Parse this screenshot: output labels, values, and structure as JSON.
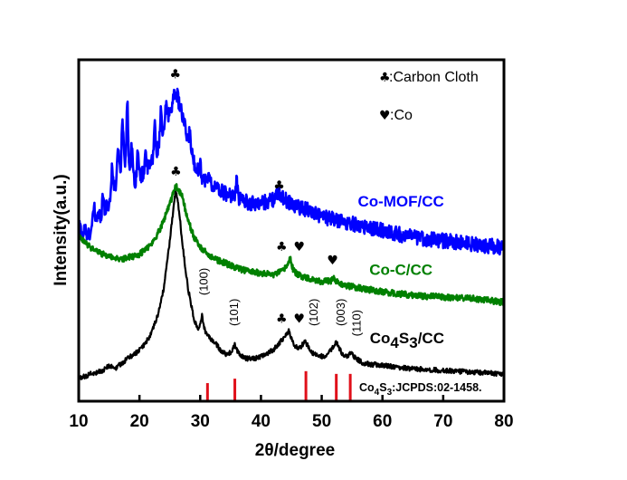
{
  "chart_data": {
    "type": "line",
    "title": "",
    "xlabel": "2θ/degree",
    "ylabel": "Intensity(a.u.)",
    "xlim": [
      10,
      80
    ],
    "ylim": [
      0,
      100
    ],
    "xticks": [
      10,
      20,
      30,
      40,
      50,
      60,
      70,
      80
    ],
    "xtick_labels": [
      "10",
      "20",
      "30",
      "40",
      "50",
      "60",
      "70",
      "80"
    ],
    "yticks_visible": false,
    "grid": false,
    "series": [
      {
        "name": "Co-MOF/CC",
        "color": "#0000ff",
        "noise": 2.2,
        "x": [
          10,
          11,
          12,
          13,
          14,
          15,
          16,
          17,
          17.5,
          18,
          18.5,
          19,
          20,
          21,
          22,
          23,
          24,
          25,
          26,
          27,
          28,
          29,
          30,
          32,
          34,
          36,
          38,
          40,
          42,
          43,
          44,
          46,
          48,
          50,
          55,
          60,
          65,
          70,
          75,
          80
        ],
        "y": [
          52,
          47,
          50,
          54,
          55,
          58,
          63,
          68,
          72,
          66,
          70,
          64,
          66,
          67,
          70,
          74,
          79,
          85,
          91,
          84,
          76,
          70,
          66,
          63,
          61,
          60,
          58,
          58,
          59,
          61,
          59,
          57,
          56,
          54,
          52,
          50,
          48,
          47,
          46,
          45
        ],
        "spikes": [
          [
            11,
            4
          ],
          [
            12.5,
            5
          ],
          [
            14,
            6
          ],
          [
            15.5,
            9
          ],
          [
            16.5,
            10
          ],
          [
            17.2,
            14
          ],
          [
            18,
            21
          ],
          [
            18.8,
            9
          ],
          [
            19.7,
            8
          ],
          [
            21,
            7
          ],
          [
            22.5,
            9
          ],
          [
            23.5,
            8
          ],
          [
            24.4,
            6
          ],
          [
            28.3,
            5
          ],
          [
            30,
            4
          ],
          [
            31.5,
            3
          ],
          [
            36,
            4
          ]
        ],
        "label_pos": [
          55,
          57
        ]
      },
      {
        "name": "Co-C/CC",
        "color": "#008000",
        "noise": 0.9,
        "x": [
          10,
          12,
          14,
          16,
          17,
          18,
          20,
          22,
          23,
          24,
          25,
          26,
          27,
          28,
          29,
          30,
          32,
          34,
          36,
          38,
          40,
          42,
          43.5,
          44.4,
          44.8,
          45.3,
          46,
          48,
          50,
          51.5,
          52,
          52.7,
          55,
          60,
          65,
          70,
          75,
          80
        ],
        "y": [
          48,
          45,
          43,
          42,
          41.5,
          42,
          43,
          46,
          49,
          53,
          58,
          63,
          60,
          53,
          48,
          45,
          42,
          40.5,
          39,
          38,
          37.5,
          37,
          38,
          40,
          42,
          38.5,
          37,
          36,
          35,
          35.3,
          36,
          34.5,
          33.5,
          32,
          31,
          30.5,
          30,
          29
        ],
        "spikes": [],
        "label_pos": [
          55,
          37
        ]
      },
      {
        "name": "Co4S3/CC",
        "color": "#000000",
        "noise": 0.7,
        "x": [
          10,
          12,
          14,
          15,
          16,
          17,
          18,
          19,
          20,
          21,
          22,
          23,
          24,
          24.8,
          25.5,
          26,
          26.5,
          27.2,
          28,
          29,
          29.7,
          30.3,
          30.8,
          31.5,
          32.5,
          33.5,
          34.5,
          35.3,
          35.7,
          36.3,
          37.5,
          39,
          40,
          41,
          42,
          43,
          44,
          44.6,
          45.4,
          46.3,
          47.3,
          48.2,
          49.5,
          51,
          52.4,
          53.3,
          54,
          54.8,
          55.6,
          57,
          60,
          65,
          70,
          75,
          80
        ],
        "y": [
          6.5,
          8,
          9,
          10.5,
          9.5,
          11,
          12.5,
          13.5,
          15,
          17,
          20,
          25,
          33,
          44,
          55,
          62,
          56,
          44,
          33,
          24,
          20.5,
          25,
          20.5,
          18.5,
          17,
          14.5,
          13.5,
          15,
          16.5,
          14,
          12.5,
          12.5,
          13,
          14,
          15,
          17,
          19,
          20.5,
          16.5,
          15.5,
          17.5,
          14.5,
          13,
          13.5,
          17.5,
          14,
          13,
          14,
          12.5,
          11,
          10.5,
          9.5,
          9,
          8.5,
          8
        ],
        "spikes": [],
        "label_pos": [
          56,
          17
        ]
      }
    ],
    "reference_pattern": {
      "name": "Co4S3:JCPDS:02-1458.",
      "label_main": "Co",
      "label_sub1": "4",
      "label_mid": "S",
      "label_sub2": "3",
      "label_rest": ":JCPDS:02-1458.",
      "color": "#e0101a",
      "positions": [
        31.2,
        35.7,
        47.4,
        52.4,
        54.7
      ],
      "relative_intensities": [
        5.3,
        6.6,
        8.8,
        8.0,
        8.0
      ]
    },
    "peak_annotations": [
      {
        "text": "♣",
        "x": 25.9,
        "y": 94.5,
        "kind": "marker"
      },
      {
        "text": "♣",
        "x": 43,
        "y": 62,
        "kind": "marker"
      },
      {
        "text": "♣",
        "x": 26.0,
        "y": 66,
        "kind": "marker"
      },
      {
        "text": "♣",
        "x": 43.4,
        "y": 44,
        "kind": "marker"
      },
      {
        "text": "♥",
        "x": 46.3,
        "y": 44,
        "kind": "marker"
      },
      {
        "text": "♥",
        "x": 51.8,
        "y": 40,
        "kind": "marker"
      },
      {
        "text": "♣",
        "x": 43.4,
        "y": 23,
        "kind": "marker"
      },
      {
        "text": "♥",
        "x": 46.3,
        "y": 23,
        "kind": "marker"
      },
      {
        "text": "(100)",
        "x": 30.6,
        "y": 31,
        "kind": "hkl"
      },
      {
        "text": "(101)",
        "x": 35.6,
        "y": 22,
        "kind": "hkl"
      },
      {
        "text": "(102)",
        "x": 48.7,
        "y": 22,
        "kind": "hkl"
      },
      {
        "text": "(003)",
        "x": 53.2,
        "y": 22,
        "kind": "hkl"
      },
      {
        "text": "(110)",
        "x": 55.8,
        "y": 19,
        "kind": "hkl"
      }
    ],
    "legend": {
      "position": "top-right",
      "entries": [
        {
          "symbol": "♣",
          "label": ":Carbon Cloth"
        },
        {
          "symbol": "♥",
          "label": ":Co"
        }
      ]
    }
  }
}
